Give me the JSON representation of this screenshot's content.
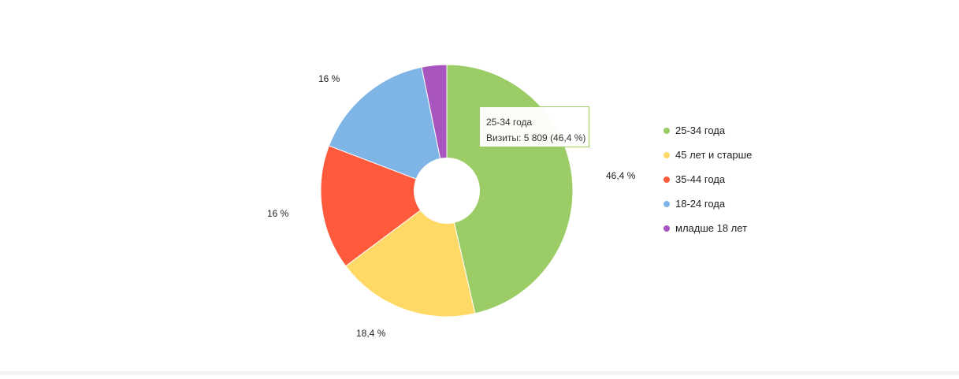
{
  "chart_data": {
    "type": "pie",
    "title": "",
    "categories": [
      "25-34 года",
      "45 лет и старше",
      "35-44 года",
      "18-24 года",
      "младше 18 лет"
    ],
    "values": [
      46.4,
      18.4,
      16,
      16,
      3.2
    ],
    "value_labels": [
      "46,4 %",
      "18,4 %",
      "16 %",
      "16 %",
      ""
    ],
    "colors": [
      "#9ccc65",
      "#ffd966",
      "#ff5a3c",
      "#7eb5e6",
      "#a855c0"
    ],
    "legend_placement": "right",
    "donut": true,
    "tooltip": {
      "series": "25-34 года",
      "line": "Визиты: 5 809 (46,4 %)"
    }
  }
}
